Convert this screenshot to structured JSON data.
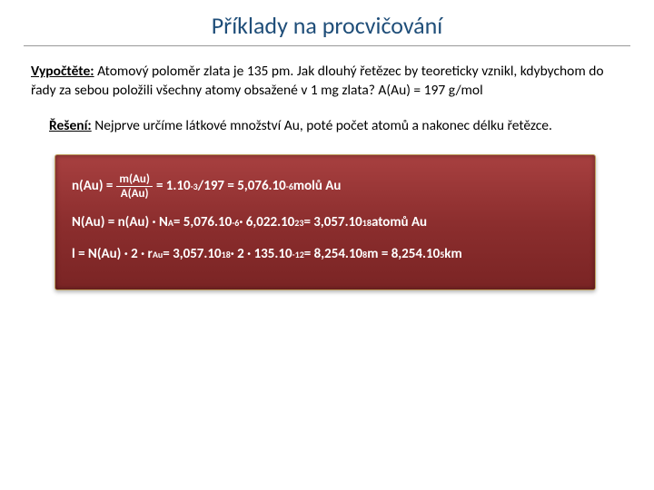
{
  "title": "Příklady na procvičování",
  "problem": {
    "lead": "Vypočtěte:",
    "text": " Atomový poloměr zlata je 135 pm. Jak dlouhý řetězec by teoreticky vznikl, kdybychom do řady za sebou položili všechny atomy obsažené v 1 mg zlata?           A(Au) = 197 g/mol"
  },
  "solution": {
    "lead": "Řešení:",
    "text": " Nejprve určíme látkové množství Au, poté počet atomů a nakonec délku řetězce."
  },
  "box": {
    "bg_gradient_top": "#a84040",
    "bg_gradient_mid": "#8c2e2e",
    "bg_gradient_bot": "#7a2424",
    "border_color": "#c0a060",
    "text_color": "#ffffff",
    "row1": {
      "lhs": "n(Au) = ",
      "frac_num": "m(Au)",
      "frac_den": "A(Au)",
      "mid": " = 1.10",
      "exp1": "-3",
      "after_exp1": "/197 = 5,076.10",
      "exp2": "-6",
      "tail": " molů Au"
    },
    "row2": {
      "pre": "N(Au) = n(Au) · N",
      "sub1": "A",
      "mid1": "= 5,076.10",
      "exp1": "-6",
      "mid2": " · 6,022.10",
      "exp2": "23",
      "mid3": " = 3,057.10",
      "exp3": "18",
      "tail": " atomů Au"
    },
    "row3": {
      "pre": "l = N(Au) · 2 · r",
      "sub1": "Au",
      "mid1": " = 3,057.10",
      "exp1": "18",
      "mid2": " · 2 · 135.10",
      "exp2": "-12",
      "mid3": " = 8,254.10",
      "exp3": "8",
      "mid4": " m = 8,254.10",
      "exp4": "5",
      "tail": " km"
    }
  }
}
